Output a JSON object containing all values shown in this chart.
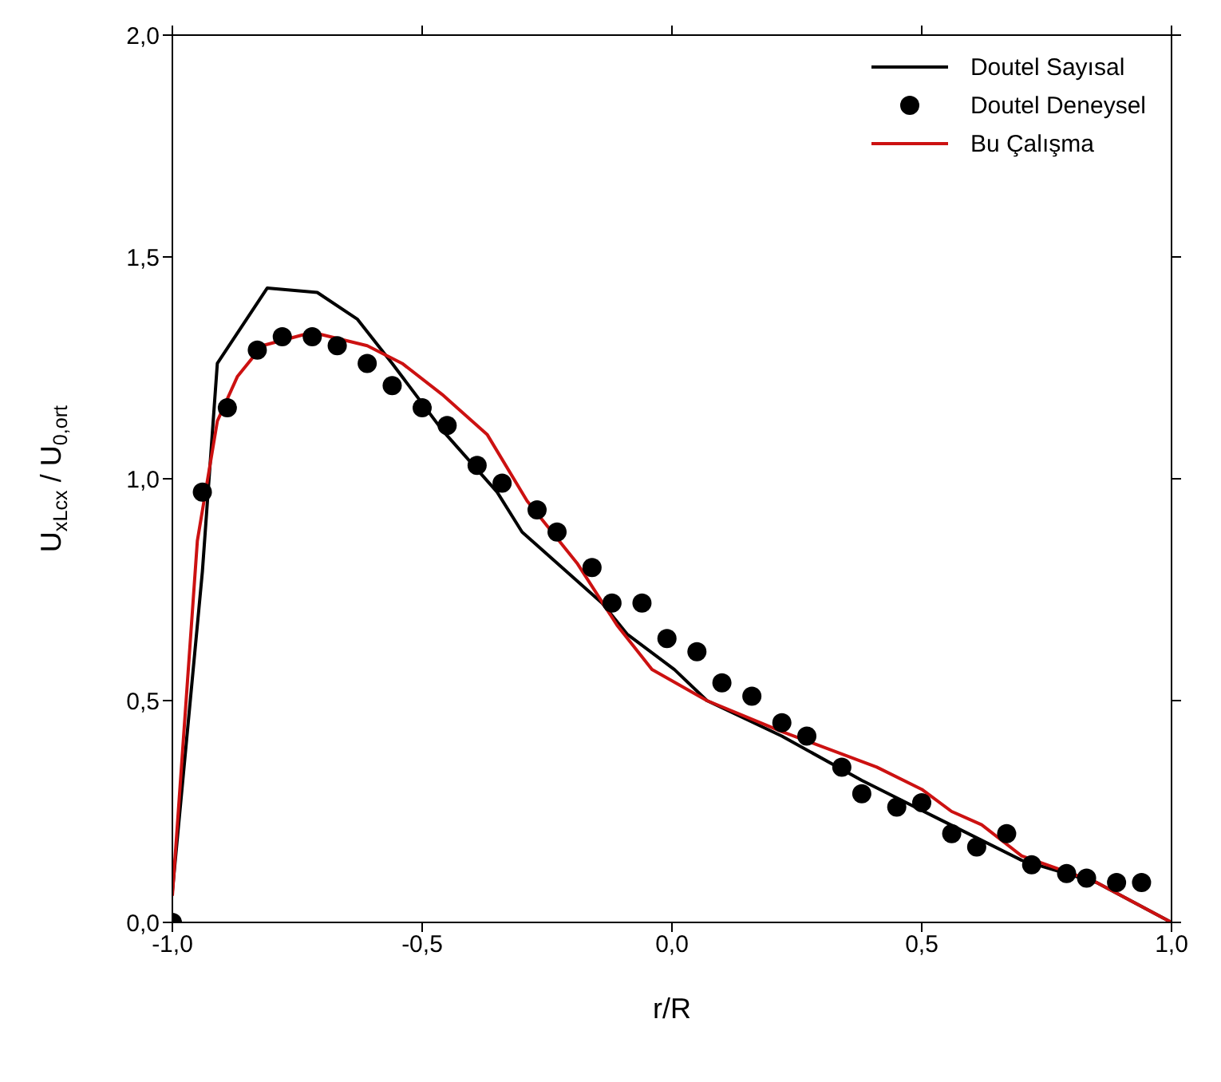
{
  "chart_data": {
    "type": "line",
    "xlabel": "r/R",
    "ylabel": "U$_{xLcx}$ / U$_{0,ort}$",
    "xlim": [
      -1,
      1
    ],
    "ylim": [
      0,
      2
    ],
    "xticks": [
      {
        "value": -1,
        "label": "-1,0"
      },
      {
        "value": -0.5,
        "label": "-0,5"
      },
      {
        "value": 0,
        "label": "0,0"
      },
      {
        "value": 0.5,
        "label": "0,5"
      },
      {
        "value": 1,
        "label": "1,0"
      }
    ],
    "yticks": [
      {
        "value": 0,
        "label": "0,0"
      },
      {
        "value": 0.5,
        "label": "0,5"
      },
      {
        "value": 1,
        "label": "1,0"
      },
      {
        "value": 1.5,
        "label": "1,5"
      },
      {
        "value": 2,
        "label": "2,0"
      }
    ],
    "legend": "top right",
    "marker": "none",
    "line_style": "solid",
    "series": [
      {
        "name": "Doutel Sayısal",
        "color": "#000000",
        "x": [
          -1,
          -0.94,
          -0.91,
          -0.81,
          -0.71,
          -0.63,
          -0.56,
          -0.46,
          -0.35,
          -0.3,
          -0.14,
          -0.09,
          0.005,
          0.07,
          0.22,
          0.38,
          0.54,
          0.7,
          0.85,
          1
        ],
        "values": [
          0.07,
          0.79,
          1.26,
          1.43,
          1.42,
          1.36,
          1.26,
          1.11,
          0.97,
          0.88,
          0.72,
          0.65,
          0.57,
          0.5,
          0.42,
          0.32,
          0.23,
          0.14,
          0.09,
          0
        ]
      },
      {
        "name": "Doutel Deneysel",
        "type": "scatter",
        "marker": "circle",
        "color": "#000000",
        "x": [
          -1,
          -0.94,
          -0.89,
          -0.83,
          -0.78,
          -0.72,
          -0.67,
          -0.61,
          -0.56,
          -0.5,
          -0.45,
          -0.39,
          -0.34,
          -0.27,
          -0.23,
          -0.16,
          -0.12,
          -0.06,
          -0.01,
          0.05,
          0.1,
          0.16,
          0.22,
          0.27,
          0.34,
          0.38,
          0.45,
          0.5,
          0.56,
          0.61,
          0.67,
          0.72,
          0.79,
          0.83,
          0.89,
          0.94
        ],
        "values": [
          0,
          0.97,
          1.16,
          1.29,
          1.32,
          1.32,
          1.3,
          1.26,
          1.21,
          1.16,
          1.12,
          1.03,
          0.99,
          0.93,
          0.88,
          0.8,
          0.72,
          0.72,
          0.64,
          0.61,
          0.54,
          0.51,
          0.45,
          0.42,
          0.35,
          0.29,
          0.26,
          0.27,
          0.2,
          0.17,
          0.2,
          0.13,
          0.11,
          0.1,
          0.09,
          0.09
        ]
      },
      {
        "name": "Bu Çalışma",
        "color": "#cc1111",
        "x": [
          -1,
          -0.95,
          -0.91,
          -0.87,
          -0.82,
          -0.72,
          -0.61,
          -0.54,
          -0.46,
          -0.37,
          -0.29,
          -0.19,
          -0.11,
          -0.04,
          0.07,
          0.22,
          0.41,
          0.5,
          0.56,
          0.62,
          0.7,
          0.85,
          1
        ],
        "values": [
          0.06,
          0.86,
          1.13,
          1.23,
          1.3,
          1.33,
          1.3,
          1.26,
          1.19,
          1.1,
          0.95,
          0.81,
          0.67,
          0.57,
          0.5,
          0.43,
          0.35,
          0.3,
          0.25,
          0.22,
          0.15,
          0.09,
          0
        ]
      }
    ]
  }
}
